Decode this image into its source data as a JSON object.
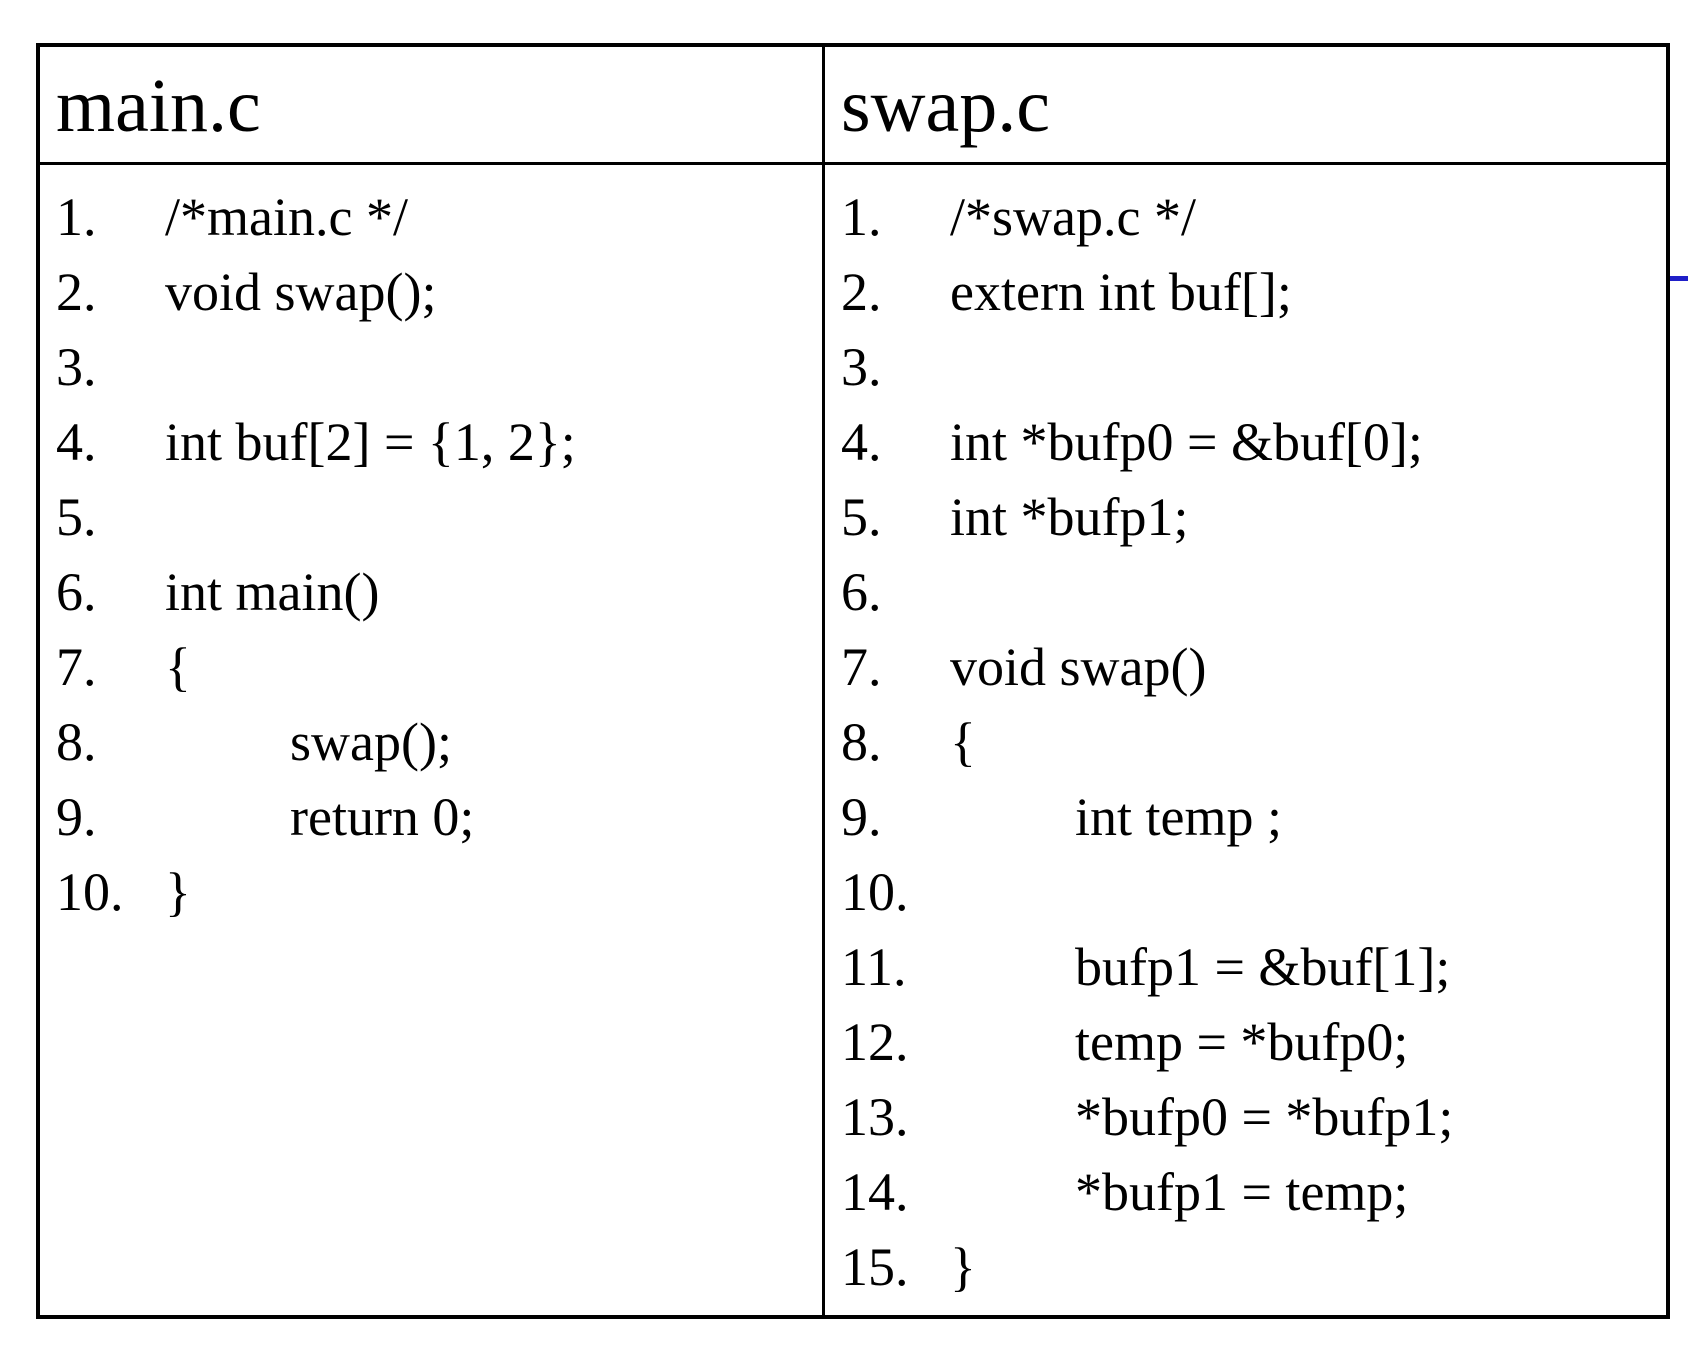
{
  "files": [
    {
      "name": "main.c",
      "lines": [
        {
          "number": "1.",
          "indent": 0,
          "code": "/*main.c */"
        },
        {
          "number": "2.",
          "indent": 0,
          "code": "void swap();"
        },
        {
          "number": "3.",
          "indent": 0,
          "code": ""
        },
        {
          "number": "4.",
          "indent": 0,
          "code": "int buf[2] = {1, 2};"
        },
        {
          "number": "5.",
          "indent": 0,
          "code": ""
        },
        {
          "number": "6.",
          "indent": 0,
          "code": "int main()"
        },
        {
          "number": "7.",
          "indent": 0,
          "code": "{"
        },
        {
          "number": "8.",
          "indent": 1,
          "code": "swap();"
        },
        {
          "number": "9.",
          "indent": 1,
          "code": "return 0;"
        },
        {
          "number": "10.",
          "indent": 0,
          "code": "}"
        }
      ]
    },
    {
      "name": "swap.c",
      "lines": [
        {
          "number": "1.",
          "indent": 0,
          "code": "/*swap.c */"
        },
        {
          "number": "2.",
          "indent": 0,
          "code": "extern int buf[];"
        },
        {
          "number": "3.",
          "indent": 0,
          "code": ""
        },
        {
          "number": "4.",
          "indent": 0,
          "code": "int *bufp0 = &buf[0];"
        },
        {
          "number": "5.",
          "indent": 0,
          "code": "int *bufp1;"
        },
        {
          "number": "6.",
          "indent": 0,
          "code": ""
        },
        {
          "number": "7.",
          "indent": 0,
          "code": "void swap()"
        },
        {
          "number": "8.",
          "indent": 0,
          "code": "{"
        },
        {
          "number": "9.",
          "indent": 1,
          "code": "int temp ;"
        },
        {
          "number": "10.",
          "indent": 0,
          "code": ""
        },
        {
          "number": "11.",
          "indent": 1,
          "code": "bufp1 = &buf[1];"
        },
        {
          "number": "12.",
          "indent": 1,
          "code": "temp = *bufp0;"
        },
        {
          "number": "13.",
          "indent": 1,
          "code": "*bufp0 = *bufp1;"
        },
        {
          "number": "14.",
          "indent": 1,
          "code": "*bufp1 = temp;"
        },
        {
          "number": "15.",
          "indent": 0,
          "code": "}"
        }
      ]
    }
  ],
  "colors": {
    "text": "#000000",
    "border": "#000000",
    "background": "#ffffff",
    "edge_mark": "#1f1fc8"
  }
}
